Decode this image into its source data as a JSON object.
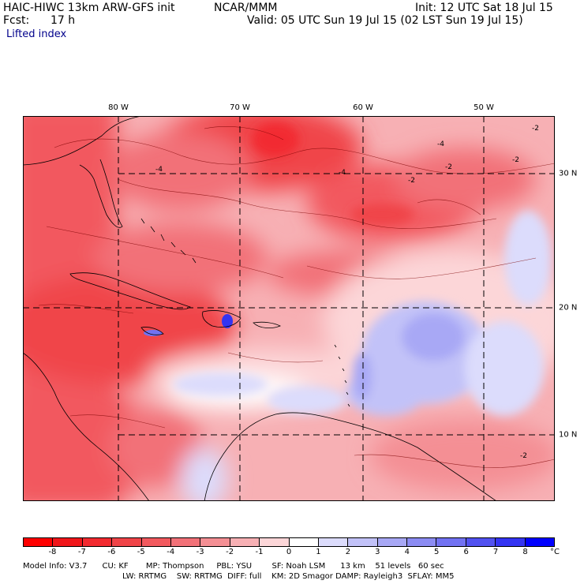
{
  "header": {
    "title_left": "HAIC-HIWC 13km ARW-GFS init",
    "org": "NCAR/MMM",
    "init": "Init: 12 UTC Sat 18 Jul 15",
    "fcst_label": "Fcst:",
    "fcst_value": "17 h",
    "valid": "Valid: 05 UTC Sun 19 Jul 15 (02 LST Sun 19 Jul 15)",
    "field": "Lifted index"
  },
  "map": {
    "lon_labels": [
      "80 W",
      "70 W",
      "60 W",
      "50 W"
    ],
    "lat_labels": [
      "30 N",
      "20 N",
      "10 N"
    ],
    "contour_labels": [
      "-2",
      "-2",
      "-2",
      "-4",
      "-4",
      "-4",
      "-2",
      "-2"
    ]
  },
  "legend": {
    "colors": [
      "#ff0000",
      "#f0161a",
      "#f22a30",
      "#f04448",
      "#f2595e",
      "#f27178",
      "#f48f94",
      "#f7b0b4",
      "#fcd6d8",
      "#ffffff",
      "#dcdcfc",
      "#c2c2f8",
      "#a8a8f5",
      "#8c8cf3",
      "#7272f2",
      "#5252f0",
      "#3434f2",
      "#0000ff"
    ],
    "labels": [
      "-8",
      "-7",
      "-6",
      "-5",
      "-4",
      "-3",
      "-2",
      "-1",
      "0",
      "1",
      "2",
      "3",
      "4",
      "5",
      "6",
      "7",
      "8"
    ],
    "unit": "°C"
  },
  "model_info": {
    "line1": "Model Info: V3.7      CU: KF       MP: Thompson     PBL: YSU        SF: Noah LSM      13 km    51 levels   60 sec",
    "line2": "LW: RRTMG    SW: RRTMG  DIFF: full    KM: 2D Smagor DAMP: Rayleigh3  SFLAY: MM5"
  }
}
